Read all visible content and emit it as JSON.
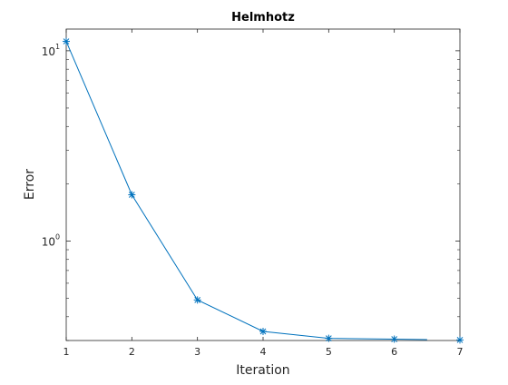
{
  "chart_data": {
    "type": "line",
    "title": "Helmhotz",
    "xlabel": "Iteration",
    "ylabel": "Error",
    "xlim": [
      1,
      7
    ],
    "ylim": [
      0.3,
      13
    ],
    "yscale": "log",
    "grid": false,
    "x": [
      1,
      2,
      3,
      4,
      5,
      6,
      7
    ],
    "x_ticks": [
      "1",
      "2",
      "3",
      "4",
      "5",
      "6",
      "7"
    ],
    "y_ticks": [
      {
        "value": 1,
        "base": "10",
        "exp": "0"
      },
      {
        "value": 10,
        "base": "10",
        "exp": "1"
      }
    ],
    "series": [
      {
        "values": [
          11.2,
          1.75,
          0.49,
          0.335,
          0.308,
          0.305,
          0.302
        ],
        "line_end_x": 6.5,
        "color": "#0072BD",
        "marker": "asterisk"
      }
    ]
  }
}
